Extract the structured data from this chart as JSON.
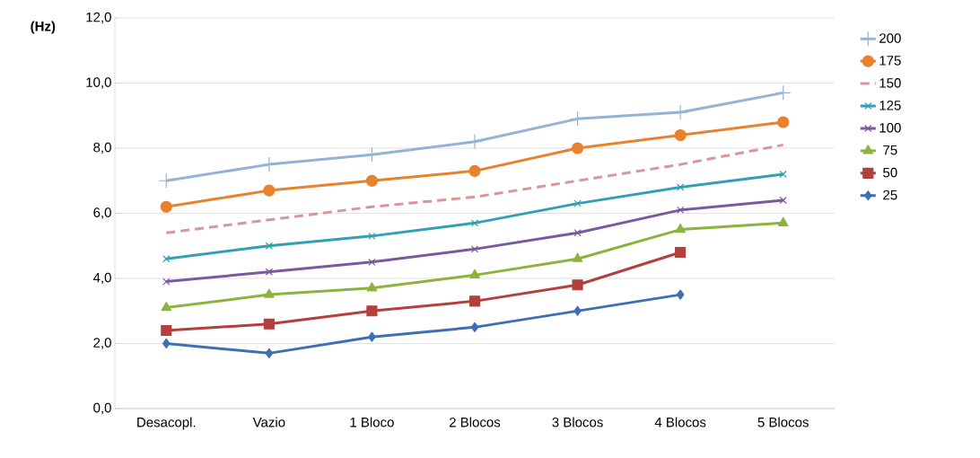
{
  "chart_data": {
    "type": "line",
    "ylabel": "(Hz)",
    "categories": [
      "Desacopl.",
      "Vazio",
      "1 Bloco",
      "2 Blocos",
      "3 Blocos",
      "4 Blocos",
      "5 Blocos"
    ],
    "ylim": [
      0,
      12
    ],
    "yticks": [
      {
        "value": 0,
        "label": "0,0"
      },
      {
        "value": 2,
        "label": "2,0"
      },
      {
        "value": 4,
        "label": "4,0"
      },
      {
        "value": 6,
        "label": "6,0"
      },
      {
        "value": 8,
        "label": "8,0"
      },
      {
        "value": 10,
        "label": "10,0"
      },
      {
        "value": 12,
        "label": "12,0"
      }
    ],
    "grid": "y",
    "legend": "right",
    "series": [
      {
        "name": "200",
        "color": "#95b3d7",
        "marker": "plus",
        "values": [
          7.0,
          7.5,
          7.8,
          8.2,
          8.9,
          9.1,
          9.7
        ]
      },
      {
        "name": "175",
        "color": "#e8822d",
        "marker": "circle",
        "values": [
          6.2,
          6.7,
          7.0,
          7.3,
          8.0,
          8.4,
          8.8
        ]
      },
      {
        "name": "150",
        "color": "#d99694",
        "marker": "none",
        "line_style": "dashed",
        "values": [
          5.4,
          5.8,
          6.2,
          6.5,
          7.0,
          7.5,
          8.1
        ]
      },
      {
        "name": "125",
        "color": "#31a0b5",
        "marker": "cross",
        "values": [
          4.6,
          5.0,
          5.3,
          5.7,
          6.3,
          6.8,
          7.2
        ]
      },
      {
        "name": "100",
        "color": "#7a5a9e",
        "marker": "cross",
        "values": [
          3.9,
          4.2,
          4.5,
          4.9,
          5.4,
          6.1,
          6.4
        ]
      },
      {
        "name": "75",
        "color": "#8db33f",
        "marker": "triangle",
        "values": [
          3.1,
          3.5,
          3.7,
          4.1,
          4.6,
          5.5,
          5.7
        ]
      },
      {
        "name": "50",
        "color": "#b3403d",
        "marker": "square",
        "values": [
          2.4,
          2.6,
          3.0,
          3.3,
          3.8,
          4.8,
          null
        ]
      },
      {
        "name": "25",
        "color": "#3e6fb0",
        "marker": "diamond",
        "values": [
          2.0,
          1.7,
          2.2,
          2.5,
          3.0,
          3.5,
          null
        ]
      }
    ]
  }
}
